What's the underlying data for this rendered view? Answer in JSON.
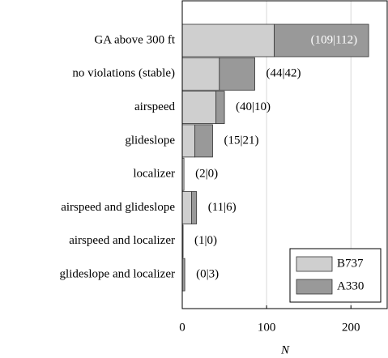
{
  "chart_data": {
    "type": "stacked_barh",
    "categories": [
      "GA above 300 ft",
      "no violations (stable)",
      "airspeed",
      "glideslope",
      "localizer",
      "airspeed and glideslope",
      "airspeed and localizer",
      "glideslope and localizer"
    ],
    "series": [
      {
        "name": "B737",
        "color": "#cfcfcf",
        "values": [
          109,
          44,
          40,
          15,
          2,
          11,
          1,
          0
        ]
      },
      {
        "name": "A330",
        "color": "#999999",
        "values": [
          112,
          42,
          10,
          21,
          0,
          6,
          0,
          3
        ]
      }
    ],
    "value_labels": [
      "(109|112)",
      "(44|42)",
      "(40|10)",
      "(15|21)",
      "(2|0)",
      "(11|6)",
      "(1|0)",
      "(0|3)"
    ],
    "xlabel": "N",
    "xlim": [
      0,
      243
    ],
    "xticks": [
      0,
      100,
      200
    ],
    "grid": true,
    "legend": "south east"
  }
}
